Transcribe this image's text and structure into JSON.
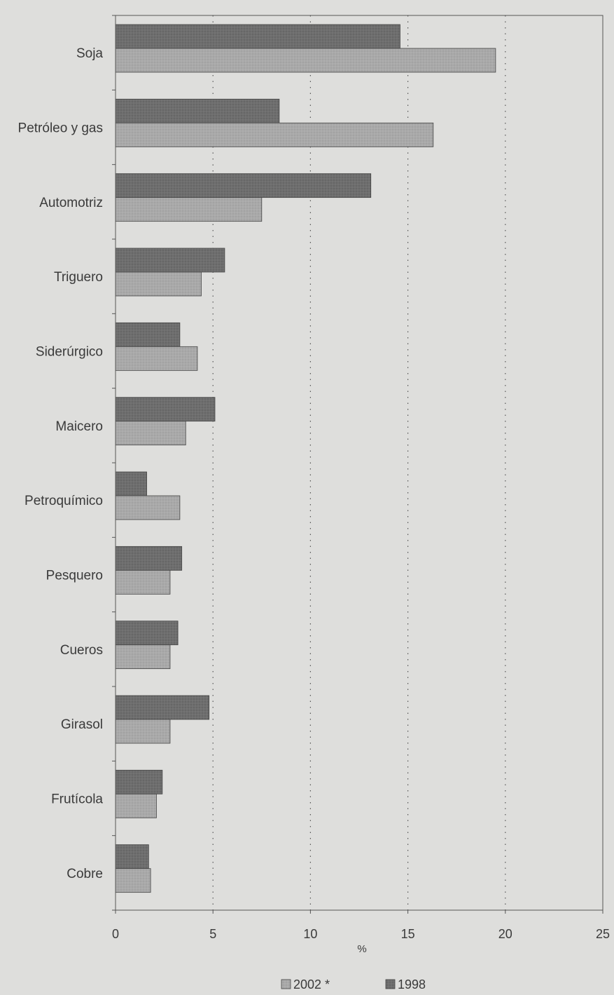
{
  "chart_data": {
    "type": "bar",
    "orientation": "horizontal",
    "categories": [
      "Soja",
      "Petróleo y gas",
      "Automotriz",
      "Triguero",
      "Siderúrgico",
      "Maicero",
      "Petroquímico",
      "Pesquero",
      "Cueros",
      "Girasol",
      "Frutícola",
      "Cobre"
    ],
    "series": [
      {
        "name": "1998",
        "values": [
          14.6,
          8.4,
          13.1,
          5.6,
          3.3,
          5.1,
          1.6,
          3.4,
          3.2,
          4.8,
          2.4,
          1.7
        ],
        "color": "#6e6e6e"
      },
      {
        "name": "2002 *",
        "values": [
          19.5,
          16.3,
          7.5,
          4.4,
          4.2,
          3.6,
          3.3,
          2.8,
          2.8,
          2.8,
          2.1,
          1.8
        ],
        "color": "#a9a9a9"
      }
    ],
    "legend_order": [
      "2002 *",
      "1998"
    ],
    "xlabel": "%",
    "xlim": [
      0,
      25
    ],
    "xticks": [
      "0",
      "5",
      "10",
      "15",
      "20",
      "25"
    ],
    "grid": "vertical dotted",
    "legend_position": "bottom"
  }
}
